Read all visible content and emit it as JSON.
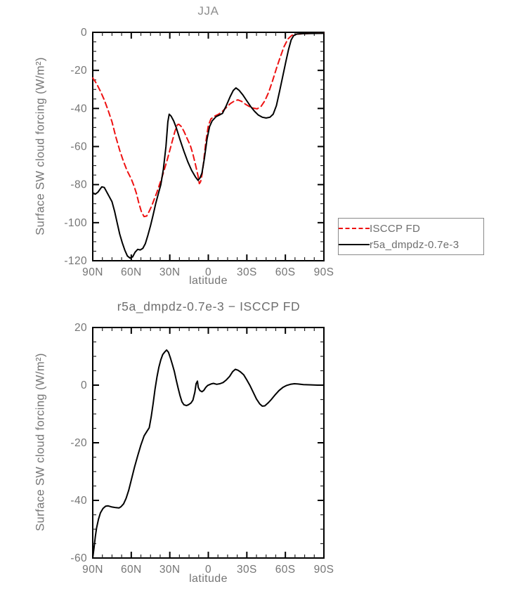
{
  "colors": {
    "background": "#ffffff",
    "axis": "#000000",
    "text_gray": "#757575",
    "title_gray": "#8f8f8f",
    "red_series": "#ee1111",
    "black_series": "#000000",
    "legend_border": "#8a8a8a"
  },
  "chart_data": [
    {
      "type": "line",
      "title": "JJA",
      "xlabel": "latitude",
      "ylabel": "Surface SW cloud forcing (W/m²)",
      "xlim": [
        90,
        -90
      ],
      "ylim": [
        -120,
        0
      ],
      "grid": false,
      "xticks": {
        "values": [
          90,
          60,
          30,
          0,
          -30,
          -60,
          -90
        ],
        "labels": [
          "90N",
          "60N",
          "30N",
          "0",
          "30S",
          "60S",
          "90S"
        ]
      },
      "yticks": {
        "values": [
          0,
          -20,
          -40,
          -60,
          -80,
          -100,
          -120
        ],
        "labels": [
          "0",
          "-20",
          "-40",
          "-60",
          "-80",
          "-100",
          "-120"
        ]
      },
      "minor_x_step": 7.5,
      "minor_y_step": 5,
      "legend": {
        "position": "outside-right",
        "entries": [
          "ISCCP FD",
          "r5a_dmpdz-0.7e-3"
        ]
      },
      "series": [
        {
          "name": "ISCCP FD",
          "color": "#ee1111",
          "style": "dashed",
          "points": [
            [
              90,
              -24
            ],
            [
              87,
              -27
            ],
            [
              84,
              -31
            ],
            [
              81,
              -35.5
            ],
            [
              78,
              -41
            ],
            [
              75,
              -47
            ],
            [
              72,
              -55
            ],
            [
              69,
              -62
            ],
            [
              66,
              -68
            ],
            [
              63,
              -73
            ],
            [
              60,
              -77
            ],
            [
              58,
              -80.5
            ],
            [
              56,
              -84.5
            ],
            [
              54,
              -90
            ],
            [
              52,
              -94.5
            ],
            [
              50,
              -96.8
            ],
            [
              48,
              -96.5
            ],
            [
              46,
              -94
            ],
            [
              44,
              -91
            ],
            [
              42,
              -87.5
            ],
            [
              40,
              -84
            ],
            [
              38,
              -80
            ],
            [
              36,
              -76
            ],
            [
              34,
              -71.5
            ],
            [
              32,
              -67
            ],
            [
              30,
              -62
            ],
            [
              28,
              -57
            ],
            [
              26,
              -52
            ],
            [
              24,
              -48.5
            ],
            [
              23,
              -48.3
            ],
            [
              21,
              -49.5
            ],
            [
              19,
              -52
            ],
            [
              17,
              -55
            ],
            [
              14,
              -59.5
            ],
            [
              12,
              -64
            ],
            [
              10,
              -69.5
            ],
            [
              8,
              -75.5
            ],
            [
              7,
              -79.5
            ],
            [
              6,
              -78.5
            ],
            [
              5,
              -75
            ],
            [
              4,
              -70
            ],
            [
              2,
              -58
            ],
            [
              0,
              -49
            ],
            [
              -2,
              -45.5
            ],
            [
              -5,
              -44
            ],
            [
              -8,
              -43
            ],
            [
              -11,
              -41.5
            ],
            [
              -14,
              -39.5
            ],
            [
              -17,
              -37.5
            ],
            [
              -20,
              -36.2
            ],
            [
              -23,
              -35.5
            ],
            [
              -26,
              -36.3
            ],
            [
              -29,
              -37.8
            ],
            [
              -32,
              -39
            ],
            [
              -35,
              -39.8
            ],
            [
              -38,
              -40.2
            ],
            [
              -41,
              -39
            ],
            [
              -44,
              -36
            ],
            [
              -47,
              -31.5
            ],
            [
              -50,
              -25.5
            ],
            [
              -53,
              -19
            ],
            [
              -56,
              -13
            ],
            [
              -59,
              -7.5
            ],
            [
              -62,
              -3.5
            ],
            [
              -65,
              -1.6
            ],
            [
              -68,
              -1
            ],
            [
              -72,
              -0.8
            ],
            [
              -78,
              -0.6
            ],
            [
              -84,
              -0.5
            ],
            [
              -90,
              -0.4
            ]
          ]
        },
        {
          "name": "r5a_dmpdz-0.7e-3",
          "color": "#000000",
          "style": "solid",
          "points": [
            [
              90,
              -84.3
            ],
            [
              88,
              -85
            ],
            [
              86,
              -84
            ],
            [
              83,
              -81.2
            ],
            [
              81,
              -81.5
            ],
            [
              79,
              -84
            ],
            [
              77,
              -86.5
            ],
            [
              75,
              -89
            ],
            [
              73,
              -94
            ],
            [
              71,
              -100
            ],
            [
              69,
              -106
            ],
            [
              67,
              -110.5
            ],
            [
              65,
              -114.5
            ],
            [
              63,
              -117.5
            ],
            [
              61,
              -118.6
            ],
            [
              59,
              -118
            ],
            [
              57,
              -115.5
            ],
            [
              55,
              -114
            ],
            [
              53,
              -114.3
            ],
            [
              51,
              -113.5
            ],
            [
              49,
              -111
            ],
            [
              47,
              -106.5
            ],
            [
              45,
              -101.5
            ],
            [
              43,
              -96
            ],
            [
              41,
              -90
            ],
            [
              39,
              -85
            ],
            [
              37,
              -80
            ],
            [
              35,
              -72
            ],
            [
              33,
              -60
            ],
            [
              31.5,
              -47
            ],
            [
              30.5,
              -43
            ],
            [
              29,
              -44
            ],
            [
              27,
              -46.5
            ],
            [
              25,
              -50
            ],
            [
              22,
              -56.5
            ],
            [
              19,
              -62.5
            ],
            [
              16,
              -68
            ],
            [
              13,
              -72.5
            ],
            [
              10,
              -76
            ],
            [
              8,
              -77.8
            ],
            [
              6.5,
              -76.5
            ],
            [
              5,
              -74
            ],
            [
              3,
              -66
            ],
            [
              1,
              -56
            ],
            [
              -1,
              -49.5
            ],
            [
              -3,
              -46.5
            ],
            [
              -6,
              -44.3
            ],
            [
              -9,
              -43.3
            ],
            [
              -11,
              -42.6
            ],
            [
              -14,
              -38.5
            ],
            [
              -17,
              -33.8
            ],
            [
              -19.5,
              -30.5
            ],
            [
              -21.5,
              -29.2
            ],
            [
              -24,
              -30.5
            ],
            [
              -27,
              -33
            ],
            [
              -30,
              -36
            ],
            [
              -33,
              -39
            ],
            [
              -36,
              -41.5
            ],
            [
              -39,
              -43.5
            ],
            [
              -42,
              -44.6
            ],
            [
              -45,
              -45
            ],
            [
              -48,
              -44.6
            ],
            [
              -50.5,
              -43
            ],
            [
              -53,
              -38.5
            ],
            [
              -55.5,
              -31
            ],
            [
              -58,
              -23
            ],
            [
              -60.5,
              -15
            ],
            [
              -62.5,
              -9
            ],
            [
              -64.5,
              -4
            ],
            [
              -66.5,
              -1.7
            ],
            [
              -69,
              -0.9
            ],
            [
              -73,
              -0.7
            ],
            [
              -80,
              -0.6
            ],
            [
              -90,
              -0.5
            ]
          ]
        }
      ]
    },
    {
      "type": "line",
      "title": "r5a_dmpdz-0.7e-3 − ISCCP FD",
      "xlabel": "latitude",
      "ylabel": "Surface SW cloud forcing (W/m²)",
      "xlim": [
        90,
        -90
      ],
      "ylim": [
        -60,
        20
      ],
      "grid": false,
      "xticks": {
        "values": [
          90,
          60,
          30,
          0,
          -30,
          -60,
          -90
        ],
        "labels": [
          "90N",
          "60N",
          "30N",
          "0",
          "30S",
          "60S",
          "90S"
        ]
      },
      "yticks": {
        "values": [
          20,
          0,
          -20,
          -40,
          -60
        ],
        "labels": [
          "20",
          "0",
          "-20",
          "-40",
          "-60"
        ]
      },
      "minor_x_step": 7.5,
      "minor_y_step": 5,
      "series": [
        {
          "name": "r5a_dmpdz-0.7e-3 minus ISCCP FD",
          "color": "#000000",
          "style": "solid",
          "points": [
            [
              90,
              -60
            ],
            [
              89,
              -56.5
            ],
            [
              88,
              -52.5
            ],
            [
              87,
              -49.5
            ],
            [
              85.5,
              -46.5
            ],
            [
              84,
              -44.3
            ],
            [
              82,
              -42.8
            ],
            [
              80,
              -42
            ],
            [
              78,
              -41.9
            ],
            [
              75,
              -42.3
            ],
            [
              72,
              -42.5
            ],
            [
              69.5,
              -42.6
            ],
            [
              68,
              -42.2
            ],
            [
              66,
              -41.2
            ],
            [
              64,
              -39.3
            ],
            [
              62,
              -36.5
            ],
            [
              60,
              -33
            ],
            [
              57.5,
              -28.5
            ],
            [
              55,
              -24.5
            ],
            [
              52.5,
              -20.8
            ],
            [
              50,
              -17.6
            ],
            [
              47.5,
              -15.8
            ],
            [
              46,
              -14.8
            ],
            [
              44.5,
              -11
            ],
            [
              43,
              -6.5
            ],
            [
              41.5,
              -1.5
            ],
            [
              40,
              2.8
            ],
            [
              38.5,
              6.2
            ],
            [
              37,
              8.8
            ],
            [
              35.5,
              10.6
            ],
            [
              34,
              11.5
            ],
            [
              32.5,
              12.2
            ],
            [
              31,
              11.4
            ],
            [
              29.5,
              9.4
            ],
            [
              28,
              7.2
            ],
            [
              26.5,
              4.8
            ],
            [
              25,
              1.8
            ],
            [
              23.5,
              -1
            ],
            [
              22,
              -3.7
            ],
            [
              20.5,
              -5.8
            ],
            [
              19,
              -6.8
            ],
            [
              17,
              -7.1
            ],
            [
              15.5,
              -6.8
            ],
            [
              13.5,
              -6.2
            ],
            [
              12,
              -5.2
            ],
            [
              10.5,
              -2.5
            ],
            [
              9.5,
              0.5
            ],
            [
              8.5,
              1.4
            ],
            [
              7.8,
              -0.8
            ],
            [
              6.5,
              -1.9
            ],
            [
              5,
              -2.3
            ],
            [
              3.5,
              -1.8
            ],
            [
              2,
              -0.8
            ],
            [
              0.5,
              -0.1
            ],
            [
              -2,
              0.4
            ],
            [
              -4,
              0.6
            ],
            [
              -6.5,
              0.3
            ],
            [
              -9,
              0.5
            ],
            [
              -11.5,
              0.9
            ],
            [
              -14,
              1.8
            ],
            [
              -16.5,
              3
            ],
            [
              -19,
              4.7
            ],
            [
              -21,
              5.5
            ],
            [
              -23,
              5.2
            ],
            [
              -25,
              4.6
            ],
            [
              -27.5,
              3.6
            ],
            [
              -30,
              1.8
            ],
            [
              -32.5,
              -0.2
            ],
            [
              -35,
              -2.5
            ],
            [
              -37.5,
              -4.8
            ],
            [
              -40,
              -6.5
            ],
            [
              -42,
              -7.3
            ],
            [
              -44,
              -7.2
            ],
            [
              -46.5,
              -6.2
            ],
            [
              -49,
              -5
            ],
            [
              -52,
              -3.4
            ],
            [
              -55,
              -1.9
            ],
            [
              -58,
              -0.8
            ],
            [
              -61,
              -0.1
            ],
            [
              -64,
              0.3
            ],
            [
              -67,
              0.5
            ],
            [
              -70,
              0.4
            ],
            [
              -74,
              0.2
            ],
            [
              -80,
              0.1
            ],
            [
              -85,
              0
            ],
            [
              -90,
              0
            ]
          ]
        }
      ]
    }
  ]
}
